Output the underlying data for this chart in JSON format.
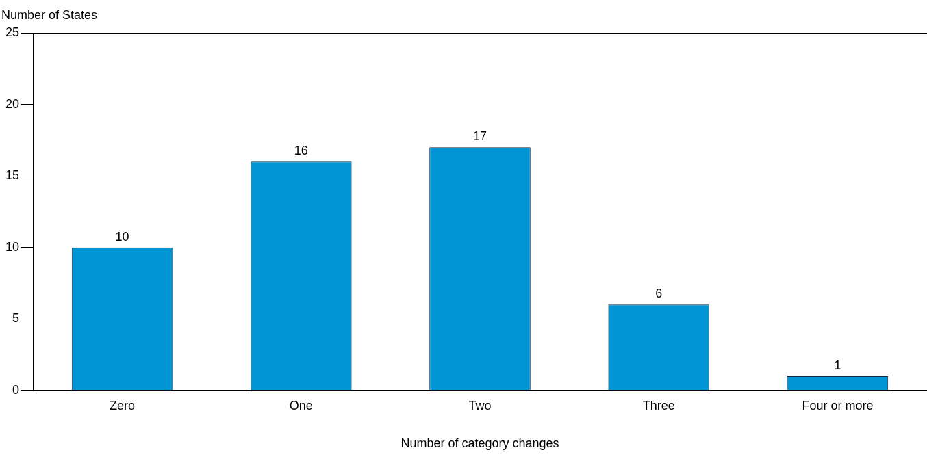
{
  "chart_data": {
    "type": "bar",
    "xlabel": "Number of category changes",
    "ylabel": "Number of States",
    "categories": [
      "Zero",
      "One",
      "Two",
      "Three",
      "Four or more"
    ],
    "values": [
      10,
      16,
      17,
      6,
      1
    ],
    "color": "#0096d6",
    "ylim": [
      0,
      25
    ],
    "yticks": [
      0,
      5,
      10,
      15,
      20,
      25
    ],
    "grid": false,
    "legend": false,
    "data_labels": true
  }
}
